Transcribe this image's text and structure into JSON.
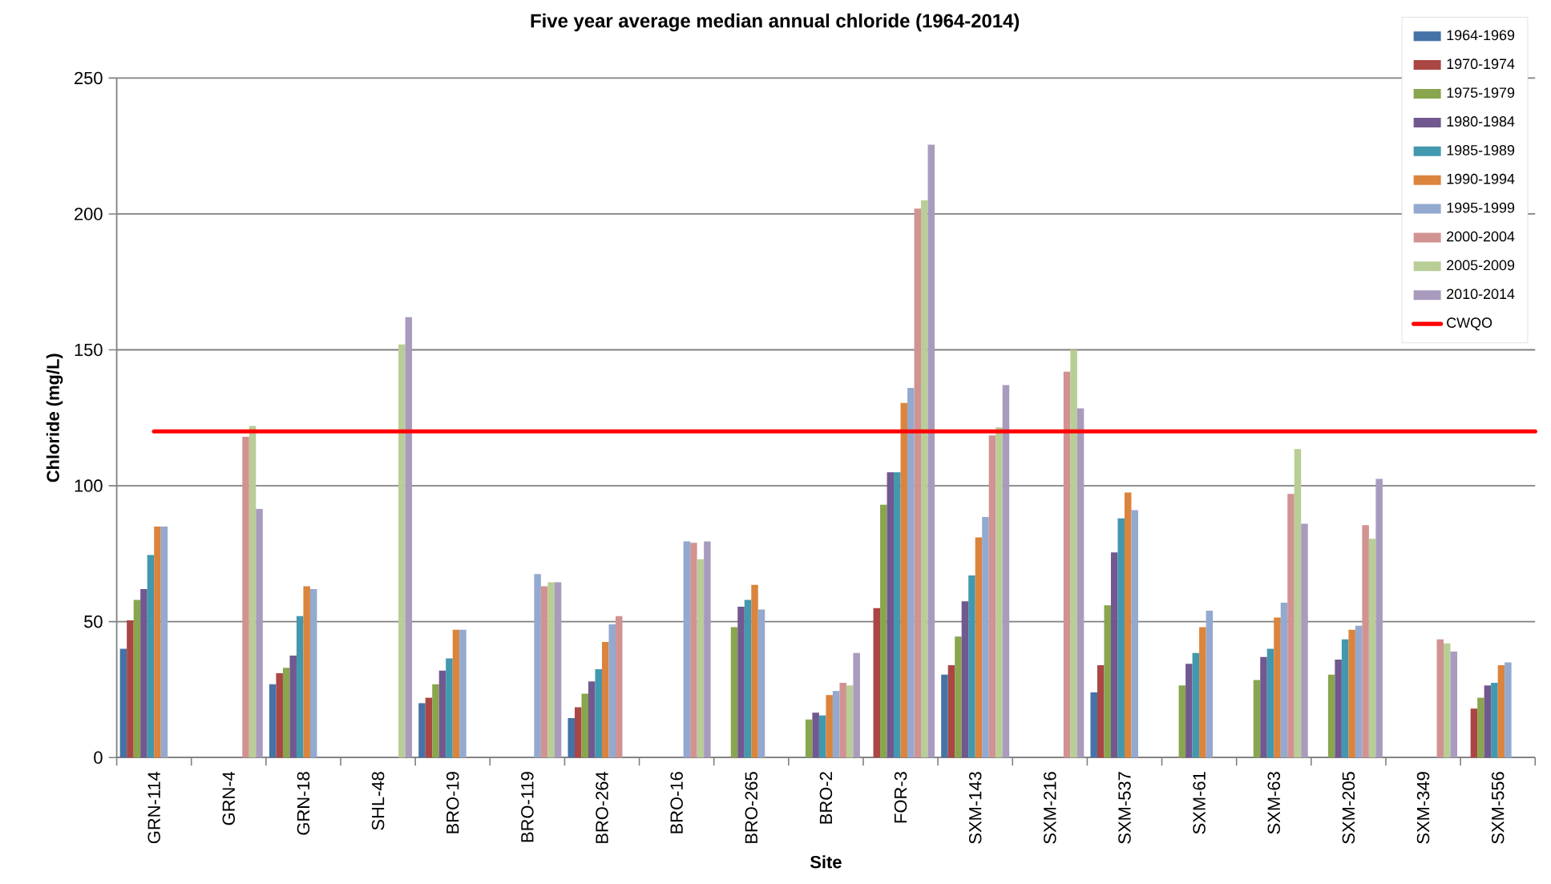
{
  "chart_data": {
    "type": "bar",
    "title": "Five year average median annual chloride (1964-2014)",
    "xlabel": "Site",
    "ylabel": "Chloride (mg/L)",
    "categories": [
      "GRN-114",
      "GRN-4",
      "GRN-18",
      "SHL-48",
      "BRO-19",
      "BRO-119",
      "BRO-264",
      "BRO-16",
      "BRO-265",
      "BRO-2",
      "FOR-3",
      "SXM-143",
      "SXM-216",
      "SXM-537",
      "SXM-61",
      "SXM-63",
      "SXM-205",
      "SXM-349",
      "SXM-556"
    ],
    "series": [
      {
        "name": "1964-1969",
        "color": "#4572a7",
        "values": [
          40,
          null,
          27,
          null,
          20,
          null,
          14.5,
          null,
          null,
          null,
          null,
          30.5,
          null,
          24,
          null,
          null,
          null,
          null,
          null
        ]
      },
      {
        "name": "1970-1974",
        "color": "#aa4643",
        "values": [
          50.5,
          null,
          31,
          null,
          22,
          null,
          18.5,
          null,
          null,
          null,
          55,
          34,
          null,
          34,
          null,
          null,
          null,
          null,
          18
        ]
      },
      {
        "name": "1975-1979",
        "color": "#89a54e",
        "values": [
          58,
          null,
          33,
          null,
          27,
          null,
          23.5,
          null,
          48,
          14,
          93,
          44.5,
          null,
          56,
          26.5,
          28.5,
          30.5,
          null,
          22
        ]
      },
      {
        "name": "1980-1984",
        "color": "#71588f",
        "values": [
          62,
          null,
          37.5,
          null,
          32,
          null,
          28,
          null,
          55.5,
          16.5,
          105,
          57.5,
          null,
          75.5,
          34.5,
          37,
          36,
          null,
          26.5
        ]
      },
      {
        "name": "1985-1989",
        "color": "#4198af",
        "values": [
          74.5,
          null,
          52,
          null,
          36.5,
          null,
          32.5,
          null,
          58,
          15.5,
          105,
          67,
          null,
          88,
          38.5,
          40,
          43.5,
          null,
          27.5
        ]
      },
      {
        "name": "1990-1994",
        "color": "#db843d",
        "values": [
          85,
          null,
          63,
          null,
          47,
          null,
          42.5,
          null,
          63.5,
          23,
          130.5,
          81,
          null,
          97.5,
          48,
          51.5,
          47,
          null,
          34
        ]
      },
      {
        "name": "1995-1999",
        "color": "#93a9cf",
        "values": [
          85,
          null,
          62,
          null,
          47,
          67.5,
          49,
          79.5,
          54.5,
          24.5,
          136,
          88.5,
          null,
          91,
          54,
          57,
          48.5,
          null,
          35
        ]
      },
      {
        "name": "2000-2004",
        "color": "#d19392",
        "values": [
          null,
          118,
          null,
          null,
          null,
          63,
          52,
          79,
          null,
          27.5,
          202,
          118.5,
          142,
          null,
          null,
          97,
          85.5,
          43.5,
          null
        ]
      },
      {
        "name": "2005-2009",
        "color": "#b9cd96",
        "values": [
          null,
          122,
          null,
          152,
          null,
          64.5,
          null,
          73,
          null,
          26.5,
          205,
          121.5,
          150,
          null,
          null,
          113.5,
          80.5,
          42,
          null
        ]
      },
      {
        "name": "2010-2014",
        "color": "#a99bbd",
        "values": [
          null,
          91.5,
          null,
          162,
          null,
          64.5,
          null,
          79.5,
          null,
          38.5,
          225.5,
          137,
          128.5,
          null,
          null,
          86,
          102.5,
          39,
          null
        ]
      }
    ],
    "ylim": [
      0,
      250
    ],
    "yticks": [
      0,
      50,
      100,
      150,
      200,
      250
    ],
    "grid": "y",
    "legend": "top right",
    "ref_lines": [
      {
        "axis": "y",
        "value": 120,
        "label": "CWQO",
        "color": "#ff0000"
      }
    ]
  }
}
